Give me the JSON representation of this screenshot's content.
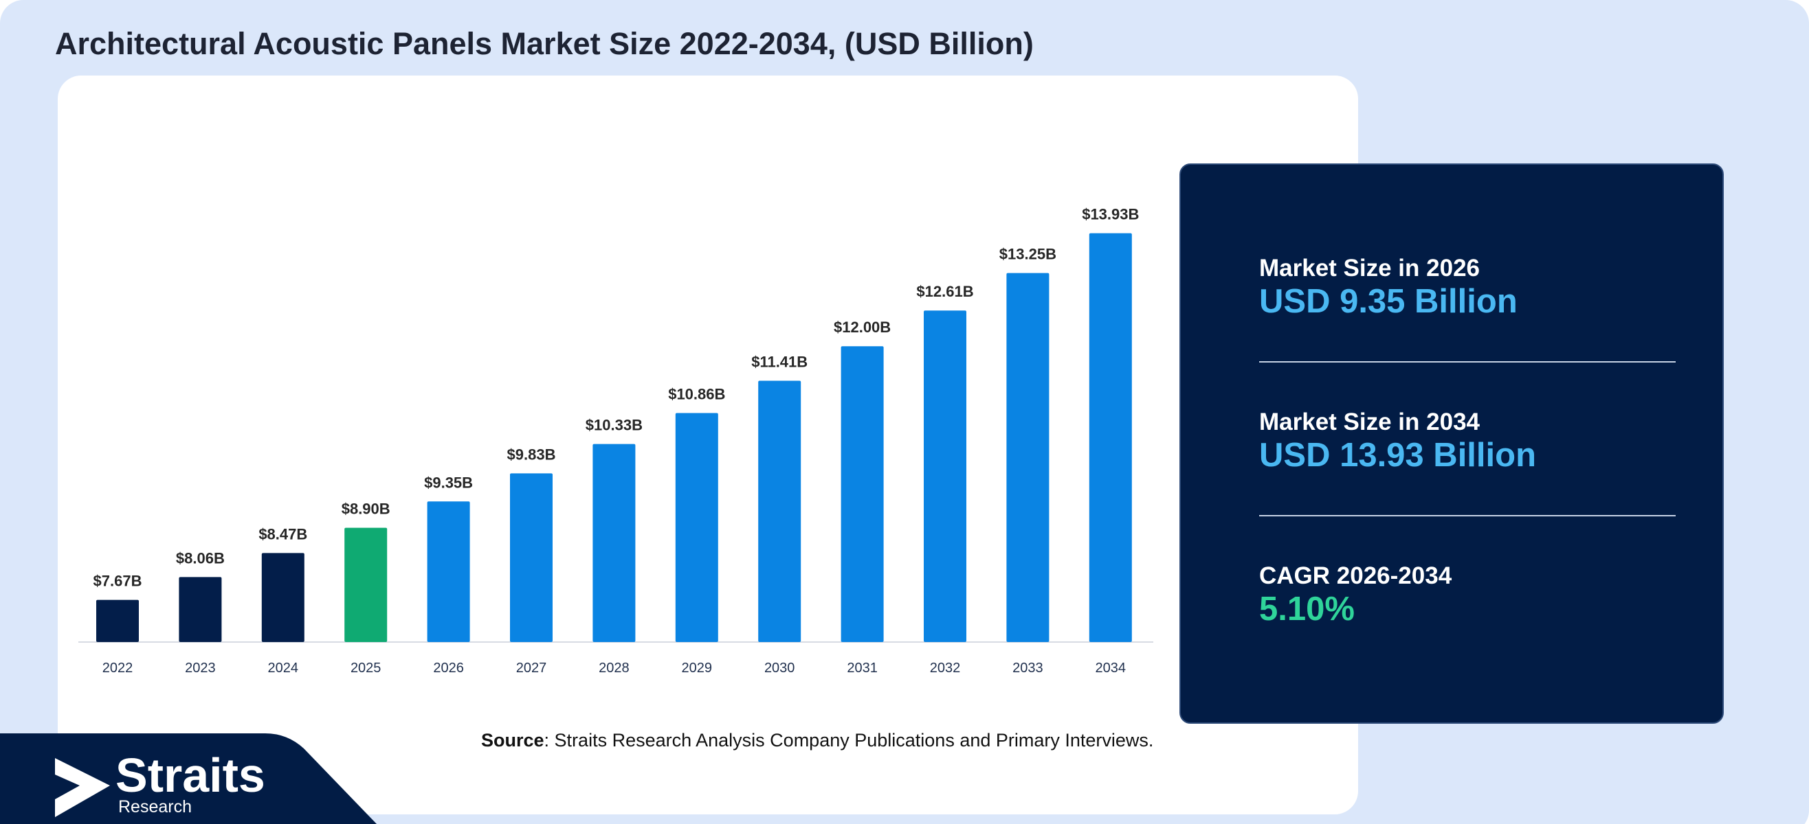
{
  "header": {
    "title": "Architectural Acoustic Panels Market Size 2022-2034, (USD Billion)"
  },
  "chart_data": {
    "type": "bar",
    "categories": [
      "2022",
      "2023",
      "2024",
      "2025",
      "2026",
      "2027",
      "2028",
      "2029",
      "2030",
      "2031",
      "2032",
      "2033",
      "2034"
    ],
    "values": [
      7.67,
      8.06,
      8.47,
      8.9,
      9.35,
      9.83,
      10.33,
      10.86,
      11.41,
      12.0,
      12.61,
      13.25,
      13.93
    ],
    "data_labels": [
      "$7.67B",
      "$8.06B",
      "$8.47B",
      "$8.90B",
      "$9.35B",
      "$9.83B",
      "$10.33B",
      "$10.86B",
      "$11.41B",
      "$12.00B",
      "$12.61B",
      "$13.25B",
      "$13.93B"
    ],
    "bar_groups": [
      "historical",
      "historical",
      "historical",
      "base",
      "forecast",
      "forecast",
      "forecast",
      "forecast",
      "forecast",
      "forecast",
      "forecast",
      "forecast",
      "forecast"
    ],
    "group_colors": {
      "historical": "#031e4a",
      "base": "#0faa72",
      "forecast": "#0a84e3"
    },
    "title": "Architectural Acoustic Panels Market Size 2022-2034, (USD Billion)",
    "xlabel": "",
    "ylabel": "",
    "y_axis_visible": false,
    "grid": false,
    "legend": "none"
  },
  "source": {
    "label": "Source",
    "text": ": Straits Research Analysis Company Publications and Primary Interviews."
  },
  "stats": {
    "market_2026_label": "Market Size in 2026",
    "market_2026_value": "USD 9.35 Billion",
    "market_2034_label": "Market Size in 2034",
    "market_2034_value": "USD 13.93 Billion",
    "cagr_label": "CAGR 2026-2034",
    "cagr_value": "5.10%"
  },
  "logo": {
    "name": "Straits",
    "subtitle": "Research"
  },
  "colors": {
    "background": "#dbe7fa",
    "card": "#ffffff",
    "stats_panel": "#021c45",
    "value_blue": "#4ab8f2",
    "value_green": "#2fd49a"
  }
}
